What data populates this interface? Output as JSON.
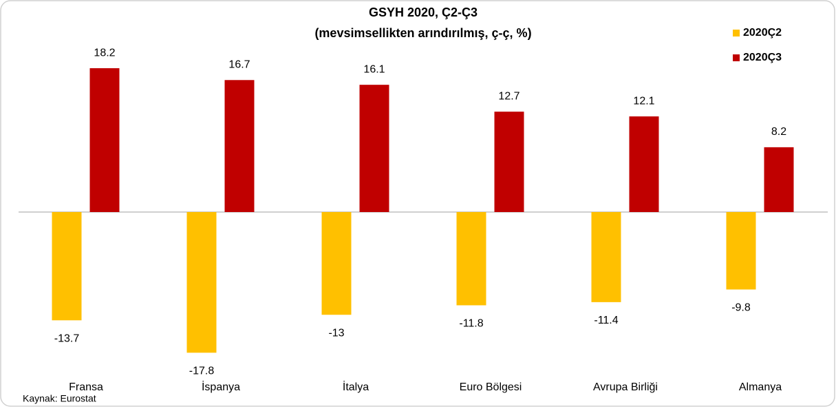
{
  "chart_data": {
    "type": "bar",
    "title": "GSYH 2020, Ç2-Ç3",
    "subtitle": "(mevsimsellikten arındırılmış, ç-ç, %)",
    "source": "Kaynak: Eurostat",
    "categories": [
      "Fransa",
      "İspanya",
      "İtalya",
      "Euro Bölgesi",
      "Avrupa Birliği",
      "Almanya"
    ],
    "series": [
      {
        "name": "2020Ç2",
        "color": "#ffc000",
        "values": [
          -13.7,
          -17.8,
          -13,
          -11.8,
          -11.4,
          -9.8
        ]
      },
      {
        "name": "2020Ç3",
        "color": "#c00000",
        "values": [
          18.2,
          16.7,
          16.1,
          12.7,
          12.1,
          8.2
        ]
      }
    ],
    "ylim": [
      -20,
      20
    ],
    "legend": "top-right"
  }
}
